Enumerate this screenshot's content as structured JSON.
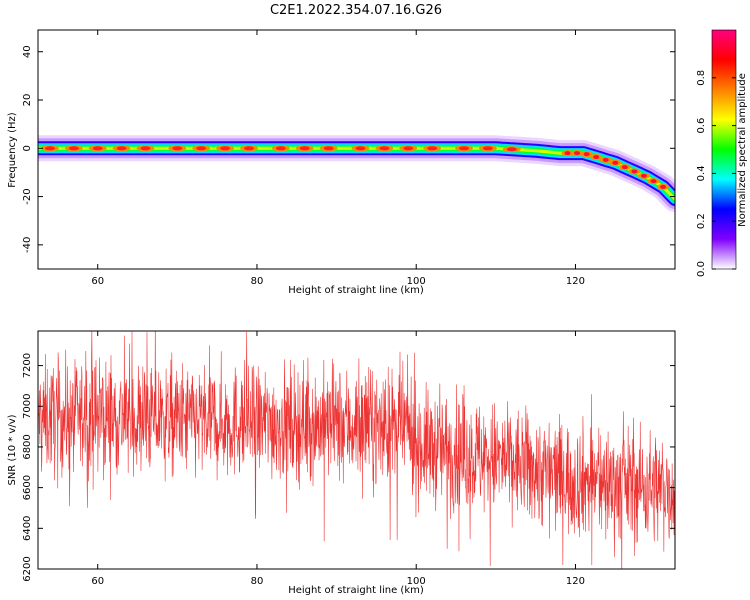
{
  "figure_title": "C2E1.2022.354.07.16.G26",
  "colors": {
    "snr_line": "#ee3333",
    "axis": "#000000",
    "background": "#ffffff"
  },
  "chart_data": [
    {
      "type": "heatmap",
      "title": "",
      "xlabel": "Height of straight line (km)",
      "ylabel": "Frequency (Hz)",
      "xlim": [
        52.5,
        132.5
      ],
      "ylim": [
        -50,
        49
      ],
      "x_ticks": [
        60,
        80,
        100,
        120
      ],
      "y_ticks": [
        -40,
        -20,
        0,
        20,
        40
      ],
      "ridge": {
        "x": [
          52.5,
          60,
          70,
          80,
          90,
          100,
          110,
          115,
          118,
          121,
          123,
          125,
          127,
          129,
          131,
          132.5
        ],
        "y": [
          0,
          0,
          0,
          0,
          0,
          0,
          0,
          -1,
          -2,
          -2,
          -4,
          -6,
          -9,
          -12,
          -16,
          -21
        ]
      },
      "peaks_x": [
        54,
        57,
        60,
        63,
        66,
        70,
        73,
        76,
        79,
        83,
        86,
        89,
        93,
        96,
        99,
        102,
        106,
        109,
        112
      ],
      "colorbar": {
        "label": "Normalized spectral amplitude",
        "range": [
          0,
          1
        ],
        "ticks": [
          0.0,
          0.2,
          0.4,
          0.6,
          0.8
        ],
        "tick_labels": [
          "0.0",
          "0.2",
          "0.4",
          "0.6",
          "0.8"
        ],
        "stops": [
          "#ffffff",
          "#8000ff",
          "#0000ff",
          "#00ffff",
          "#00ff00",
          "#ffff00",
          "#ff8000",
          "#ff0000",
          "#ff0080"
        ]
      }
    },
    {
      "type": "line",
      "title": "",
      "xlabel": "Height of straight line (km)",
      "ylabel": "SNR (10 * v/v)",
      "xlim": [
        52.5,
        132.5
      ],
      "ylim": [
        6200,
        7370
      ],
      "x_ticks": [
        60,
        80,
        100,
        120
      ],
      "y_ticks": [
        6200,
        6400,
        6600,
        6800,
        7000,
        7200
      ],
      "trend": {
        "x": [
          52.5,
          60,
          70,
          80,
          90,
          99,
          100,
          110,
          120,
          132.5
        ],
        "y": [
          6940,
          6950,
          6930,
          6920,
          6910,
          6890,
          6810,
          6740,
          6640,
          6590
        ]
      },
      "noise_std": 140,
      "n_points": 2000
    }
  ]
}
